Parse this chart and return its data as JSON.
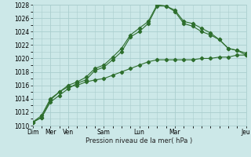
{
  "title": "",
  "xlabel": "Pression niveau de la mer( hPa )",
  "ylabel": "",
  "bg_color": "#cce8e8",
  "grid_color": "#aacece",
  "line_color": "#2d6e2d",
  "ylim": [
    1010,
    1028
  ],
  "yticks": [
    1010,
    1012,
    1014,
    1016,
    1018,
    1020,
    1022,
    1024,
    1026,
    1028
  ],
  "xlim": [
    0,
    12
  ],
  "xtick_positions": [
    0,
    1,
    2,
    4,
    6,
    8,
    12
  ],
  "xtick_labels": [
    "Dim",
    "Mer",
    "Ven",
    "Sam",
    "Lun",
    "Mar",
    "Jeu"
  ],
  "series": [
    {
      "x": [
        0,
        0.5,
        1.0,
        1.5,
        2.0,
        2.5,
        3.0,
        3.5,
        4.0,
        4.5,
        5.0,
        5.5,
        6.0,
        6.5,
        7.0,
        7.5,
        8.0,
        8.5,
        9.0,
        9.5,
        10.0,
        10.5,
        11.0,
        11.5,
        12.0
      ],
      "y": [
        1010.5,
        1011.2,
        1013.5,
        1014.5,
        1015.5,
        1016.3,
        1016.8,
        1018.2,
        1018.7,
        1019.8,
        1021.0,
        1023.2,
        1024.0,
        1025.2,
        1027.8,
        1027.8,
        1027.0,
        1025.2,
        1024.8,
        1024.0,
        1023.5,
        1022.8,
        1021.5,
        1021.2,
        1020.5
      ]
    },
    {
      "x": [
        0,
        0.5,
        1.0,
        1.5,
        2.0,
        2.5,
        3.0,
        3.5,
        4.0,
        4.5,
        5.0,
        5.5,
        6.0,
        6.5,
        7.0,
        7.5,
        8.0,
        8.5,
        9.0,
        9.5,
        10.0,
        10.5,
        11.0,
        11.5,
        12.0
      ],
      "y": [
        1010.5,
        1011.2,
        1013.8,
        1015.0,
        1016.0,
        1016.5,
        1017.2,
        1018.5,
        1019.0,
        1020.2,
        1021.5,
        1023.5,
        1024.5,
        1025.5,
        1028.0,
        1027.8,
        1027.2,
        1025.5,
        1025.2,
        1024.5,
        1023.8,
        1022.8,
        1021.5,
        1021.2,
        1020.8
      ]
    },
    {
      "x": [
        0,
        0.5,
        1.0,
        1.5,
        2.0,
        2.5,
        3.0,
        3.5,
        4.0,
        4.5,
        5.0,
        5.5,
        6.0,
        6.5,
        7.0,
        7.5,
        8.0,
        8.5,
        9.0,
        9.5,
        10.0,
        10.5,
        11.0,
        11.5,
        12.0
      ],
      "y": [
        1010.5,
        1011.5,
        1014.0,
        1015.0,
        1015.8,
        1016.0,
        1016.5,
        1016.8,
        1017.0,
        1017.5,
        1018.0,
        1018.5,
        1019.0,
        1019.5,
        1019.8,
        1019.8,
        1019.8,
        1019.8,
        1019.8,
        1020.0,
        1020.0,
        1020.2,
        1020.2,
        1020.5,
        1020.5
      ]
    }
  ]
}
